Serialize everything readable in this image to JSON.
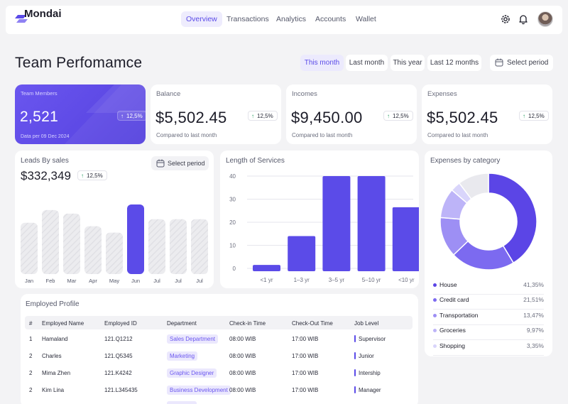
{
  "nav": {
    "logo": "Mondai",
    "links": [
      "Overview",
      "Transactions",
      "Analytics",
      "Accounts",
      "Wallet"
    ],
    "active_index": 0
  },
  "page": {
    "title": "Team Perfomamce",
    "periods": [
      "This month",
      "Last month",
      "This year",
      "Last 12 months"
    ],
    "active_period": 0,
    "select_period": "Select period"
  },
  "stats": {
    "team": {
      "label": "Team Members",
      "value": "2,521",
      "badge": "12,5%",
      "sub": "Data per 09 Dec 2024"
    },
    "balance": {
      "label": "Balance",
      "value": "$5,502.45",
      "badge": "12,5%",
      "sub": "Compared to last month"
    },
    "incomes": {
      "label": "Incomes",
      "value": "$9,450.00",
      "badge": "12,5%",
      "sub": "Compared to last month"
    },
    "expenses": {
      "label": "Expenses",
      "value": "$5,502.45",
      "badge": "12,5%",
      "sub": "Compared to last month"
    }
  },
  "leads": {
    "title": "Leads By sales",
    "value": "$332,349",
    "badge": "12,5%",
    "select_period": "Select period",
    "chart_data": {
      "type": "bar",
      "categories": [
        "Jan",
        "Feb",
        "Mar",
        "Apr",
        "May",
        "Jun",
        "Jul",
        "Jul",
        "Jul"
      ],
      "values": [
        73,
        91,
        86,
        68,
        59,
        99,
        78,
        78,
        78
      ],
      "highlight_index": 5
    }
  },
  "services": {
    "title": "Length of Services",
    "chart_data": {
      "type": "bar",
      "categories": [
        "<1 yr",
        "1–3 yr",
        "3–5 yr",
        "5–10 yr",
        "<10 yr"
      ],
      "values": [
        1.5,
        14,
        40,
        40,
        26.5
      ],
      "yticks": [
        0,
        10,
        20,
        30,
        40
      ],
      "ylim": [
        0,
        40
      ],
      "grid": true
    }
  },
  "expenses_by_category": {
    "title": "Expenses by category",
    "chart_data": {
      "type": "pie",
      "labels": [
        "House",
        "Credit card",
        "Transportation",
        "Groceries",
        "Shopping"
      ],
      "values": [
        41.35,
        21.51,
        13.47,
        9.97,
        3.35
      ],
      "display": [
        "41,35%",
        "21,51%",
        "13,47%",
        "9,97%",
        "3,35%"
      ],
      "colors": [
        "#5b45e6",
        "#7c6af0",
        "#9d8ff4",
        "#bdb4f8",
        "#d9d5fb"
      ]
    }
  },
  "employees": {
    "title": "Employed Profile",
    "columns": [
      "#",
      "Employed Name",
      "Employed ID",
      "Department",
      "Check-in Time",
      "Check-Out Time",
      "Job Level"
    ],
    "rows": [
      {
        "num": "1",
        "name": "Hamaland",
        "id": "121.Q1212",
        "dept": "Sales Department",
        "in": "08:00 WIB",
        "out": "17:00 WIB",
        "level": "Supervisor"
      },
      {
        "num": "2",
        "name": "Charles",
        "id": "121.Q5345",
        "dept": "Marketing",
        "in": "08:00 WIB",
        "out": "17:00 WIB",
        "level": "Junior"
      },
      {
        "num": "2",
        "name": "Mima Zhen",
        "id": "121.K4242",
        "dept": "Graphic Designer",
        "in": "08:00 WIB",
        "out": "17:00 WIB",
        "level": "Intership"
      },
      {
        "num": "2",
        "name": "Kim Lina",
        "id": "121.L345435",
        "dept": "Business Development",
        "in": "08:00 WIB",
        "out": "17:00 WIB",
        "level": "Manager"
      }
    ]
  },
  "colors": {
    "accent": "#5b4be8",
    "accent_light": "#eceafd",
    "positive": "#1f9a5c"
  }
}
